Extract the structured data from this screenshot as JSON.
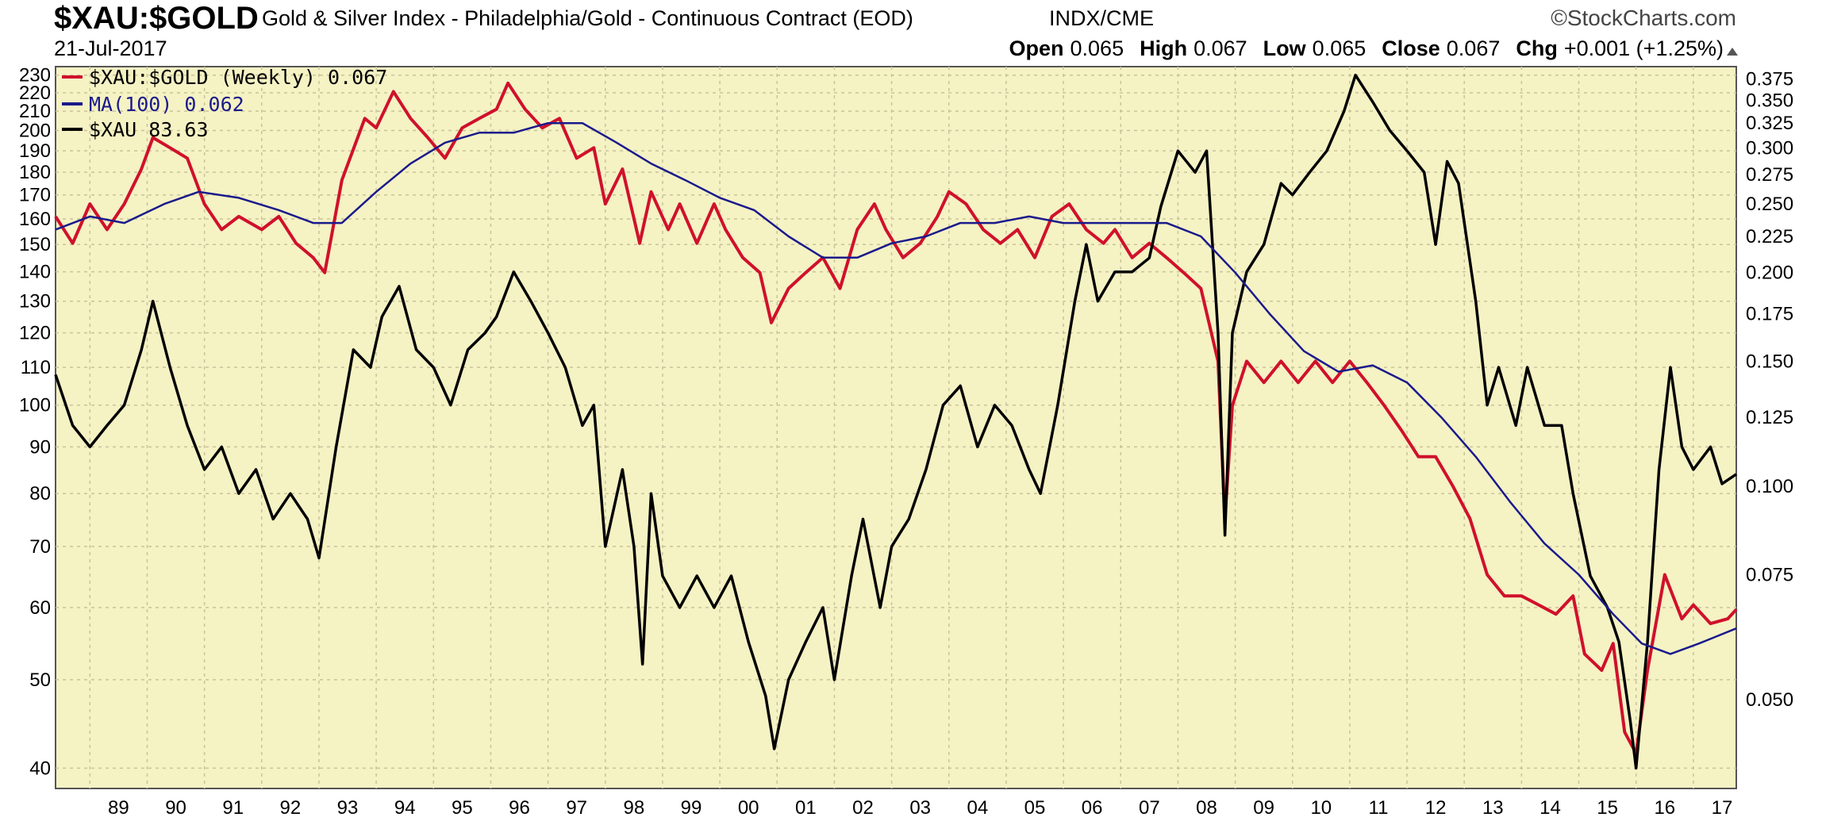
{
  "header": {
    "symbol": "$XAU:$GOLD",
    "description": "Gold & Silver Index - Philadelphia/Gold - Continuous Contract (EOD)",
    "exchange": "INDX/CME",
    "brand": "©StockCharts.com",
    "date": "21-Jul-2017"
  },
  "ohlc": {
    "open_label": "Open",
    "open": "0.065",
    "high_label": "High",
    "high": "0.067",
    "low_label": "Low",
    "low": "0.065",
    "close_label": "Close",
    "close": "0.067",
    "chg_label": "Chg",
    "chg": "+0.001 (+1.25%)"
  },
  "colors": {
    "plot_bg": "#f5f2c4",
    "grid": "#c9c39a",
    "ratio": "#d0112b",
    "ma": "#1a1a8c",
    "xau": "#000000",
    "up_arrow": "#555555"
  },
  "chart_data": {
    "type": "line",
    "scale": "log",
    "legend_position": "top-left",
    "grid": true,
    "x_tick_labels": [
      "89",
      "90",
      "91",
      "92",
      "93",
      "94",
      "95",
      "96",
      "97",
      "98",
      "99",
      "00",
      "01",
      "02",
      "03",
      "04",
      "05",
      "06",
      "07",
      "08",
      "09",
      "10",
      "11",
      "12",
      "13",
      "14",
      "15",
      "16",
      "17"
    ],
    "x_tick_years": [
      1989,
      1990,
      1991,
      1992,
      1993,
      1994,
      1995,
      1996,
      1997,
      1998,
      1999,
      2000,
      2001,
      2002,
      2003,
      2004,
      2005,
      2006,
      2007,
      2008,
      2009,
      2010,
      2011,
      2012,
      2013,
      2014,
      2015,
      2016,
      2017
    ],
    "x_range": [
      1988.4,
      2017.75
    ],
    "left_axis": {
      "ticks": [
        "230",
        "220",
        "210",
        "200",
        "190",
        "180",
        "170",
        "160",
        "150",
        "140",
        "130",
        "120",
        "110",
        "100",
        "90",
        "80",
        "70",
        "60",
        "50",
        "40"
      ],
      "range": [
        38,
        235
      ]
    },
    "right_axis": {
      "ticks": [
        "0.375",
        "0.350",
        "0.325",
        "0.300",
        "0.275",
        "0.250",
        "0.225",
        "0.200",
        "0.175",
        "0.150",
        "0.125",
        "0.100",
        "0.075",
        "0.050"
      ],
      "range": [
        0.03747,
        0.3904
      ]
    },
    "series": [
      {
        "name": "$XAU:$GOLD (Weekly)",
        "last": "0.067",
        "axis": "right",
        "points": [
          [
            1988.4,
            0.24
          ],
          [
            1988.7,
            0.22
          ],
          [
            1989.0,
            0.25
          ],
          [
            1989.3,
            0.23
          ],
          [
            1989.6,
            0.25
          ],
          [
            1989.9,
            0.28
          ],
          [
            1990.1,
            0.31
          ],
          [
            1990.4,
            0.3
          ],
          [
            1990.7,
            0.29
          ],
          [
            1991.0,
            0.25
          ],
          [
            1991.3,
            0.23
          ],
          [
            1991.6,
            0.24
          ],
          [
            1992.0,
            0.23
          ],
          [
            1992.3,
            0.24
          ],
          [
            1992.6,
            0.22
          ],
          [
            1992.9,
            0.21
          ],
          [
            1993.1,
            0.2
          ],
          [
            1993.4,
            0.27
          ],
          [
            1993.8,
            0.33
          ],
          [
            1994.0,
            0.32
          ],
          [
            1994.3,
            0.36
          ],
          [
            1994.6,
            0.33
          ],
          [
            1994.9,
            0.31
          ],
          [
            1995.2,
            0.29
          ],
          [
            1995.5,
            0.32
          ],
          [
            1995.8,
            0.33
          ],
          [
            1996.1,
            0.34
          ],
          [
            1996.3,
            0.37
          ],
          [
            1996.6,
            0.34
          ],
          [
            1996.9,
            0.32
          ],
          [
            1997.2,
            0.33
          ],
          [
            1997.5,
            0.29
          ],
          [
            1997.8,
            0.3
          ],
          [
            1998.0,
            0.25
          ],
          [
            1998.3,
            0.28
          ],
          [
            1998.6,
            0.22
          ],
          [
            1998.8,
            0.26
          ],
          [
            1999.1,
            0.23
          ],
          [
            1999.3,
            0.25
          ],
          [
            1999.6,
            0.22
          ],
          [
            1999.9,
            0.25
          ],
          [
            2000.1,
            0.23
          ],
          [
            2000.4,
            0.21
          ],
          [
            2000.7,
            0.2
          ],
          [
            2000.9,
            0.17
          ],
          [
            2001.2,
            0.19
          ],
          [
            2001.5,
            0.2
          ],
          [
            2001.8,
            0.21
          ],
          [
            2002.1,
            0.19
          ],
          [
            2002.4,
            0.23
          ],
          [
            2002.7,
            0.25
          ],
          [
            2002.9,
            0.23
          ],
          [
            2003.2,
            0.21
          ],
          [
            2003.5,
            0.22
          ],
          [
            2003.8,
            0.24
          ],
          [
            2004.0,
            0.26
          ],
          [
            2004.3,
            0.25
          ],
          [
            2004.6,
            0.23
          ],
          [
            2004.9,
            0.22
          ],
          [
            2005.2,
            0.23
          ],
          [
            2005.5,
            0.21
          ],
          [
            2005.8,
            0.24
          ],
          [
            2006.1,
            0.25
          ],
          [
            2006.4,
            0.23
          ],
          [
            2006.7,
            0.22
          ],
          [
            2006.9,
            0.23
          ],
          [
            2007.2,
            0.21
          ],
          [
            2007.5,
            0.22
          ],
          [
            2007.8,
            0.21
          ],
          [
            2008.1,
            0.2
          ],
          [
            2008.4,
            0.19
          ],
          [
            2008.7,
            0.15
          ],
          [
            2008.82,
            0.09
          ],
          [
            2008.95,
            0.13
          ],
          [
            2009.2,
            0.15
          ],
          [
            2009.5,
            0.14
          ],
          [
            2009.8,
            0.15
          ],
          [
            2010.1,
            0.14
          ],
          [
            2010.4,
            0.15
          ],
          [
            2010.7,
            0.14
          ],
          [
            2011.0,
            0.15
          ],
          [
            2011.3,
            0.14
          ],
          [
            2011.6,
            0.13
          ],
          [
            2011.9,
            0.12
          ],
          [
            2012.2,
            0.11
          ],
          [
            2012.5,
            0.11
          ],
          [
            2012.8,
            0.1
          ],
          [
            2013.1,
            0.09
          ],
          [
            2013.4,
            0.075
          ],
          [
            2013.7,
            0.07
          ],
          [
            2014.0,
            0.07
          ],
          [
            2014.3,
            0.068
          ],
          [
            2014.6,
            0.066
          ],
          [
            2014.9,
            0.07
          ],
          [
            2015.1,
            0.058
          ],
          [
            2015.4,
            0.055
          ],
          [
            2015.6,
            0.06
          ],
          [
            2015.8,
            0.045
          ],
          [
            2016.0,
            0.042
          ],
          [
            2016.2,
            0.055
          ],
          [
            2016.5,
            0.075
          ],
          [
            2016.8,
            0.065
          ],
          [
            2017.0,
            0.068
          ],
          [
            2017.3,
            0.064
          ],
          [
            2017.6,
            0.065
          ],
          [
            2017.75,
            0.067
          ]
        ]
      },
      {
        "name": "MA(100)",
        "last": "0.062",
        "axis": "right",
        "points": [
          [
            1988.4,
            0.23
          ],
          [
            1989.0,
            0.24
          ],
          [
            1989.6,
            0.235
          ],
          [
            1990.3,
            0.25
          ],
          [
            1990.9,
            0.26
          ],
          [
            1991.6,
            0.255
          ],
          [
            1992.3,
            0.245
          ],
          [
            1992.9,
            0.235
          ],
          [
            1993.4,
            0.235
          ],
          [
            1994.0,
            0.26
          ],
          [
            1994.6,
            0.285
          ],
          [
            1995.2,
            0.305
          ],
          [
            1995.8,
            0.315
          ],
          [
            1996.4,
            0.315
          ],
          [
            1997.0,
            0.325
          ],
          [
            1997.6,
            0.325
          ],
          [
            1998.2,
            0.305
          ],
          [
            1998.8,
            0.285
          ],
          [
            1999.4,
            0.27
          ],
          [
            2000.0,
            0.255
          ],
          [
            2000.6,
            0.245
          ],
          [
            2001.2,
            0.225
          ],
          [
            2001.8,
            0.21
          ],
          [
            2002.4,
            0.21
          ],
          [
            2003.0,
            0.22
          ],
          [
            2003.6,
            0.225
          ],
          [
            2004.2,
            0.235
          ],
          [
            2004.8,
            0.235
          ],
          [
            2005.4,
            0.24
          ],
          [
            2006.0,
            0.235
          ],
          [
            2006.6,
            0.235
          ],
          [
            2007.2,
            0.235
          ],
          [
            2007.8,
            0.235
          ],
          [
            2008.4,
            0.225
          ],
          [
            2009.0,
            0.2
          ],
          [
            2009.6,
            0.175
          ],
          [
            2010.2,
            0.155
          ],
          [
            2010.8,
            0.145
          ],
          [
            2011.4,
            0.148
          ],
          [
            2012.0,
            0.14
          ],
          [
            2012.6,
            0.125
          ],
          [
            2013.2,
            0.11
          ],
          [
            2013.8,
            0.095
          ],
          [
            2014.4,
            0.083
          ],
          [
            2015.0,
            0.075
          ],
          [
            2015.6,
            0.066
          ],
          [
            2016.1,
            0.06
          ],
          [
            2016.6,
            0.058
          ],
          [
            2017.1,
            0.06
          ],
          [
            2017.75,
            0.063
          ]
        ]
      },
      {
        "name": "$XAU",
        "last": "83.63",
        "axis": "left",
        "points": [
          [
            1988.4,
            108
          ],
          [
            1988.7,
            95
          ],
          [
            1989.0,
            90
          ],
          [
            1989.3,
            95
          ],
          [
            1989.6,
            100
          ],
          [
            1989.9,
            115
          ],
          [
            1990.1,
            130
          ],
          [
            1990.4,
            110
          ],
          [
            1990.7,
            95
          ],
          [
            1991.0,
            85
          ],
          [
            1991.3,
            90
          ],
          [
            1991.6,
            80
          ],
          [
            1991.9,
            85
          ],
          [
            1992.2,
            75
          ],
          [
            1992.5,
            80
          ],
          [
            1992.8,
            75
          ],
          [
            1993.0,
            68
          ],
          [
            1993.3,
            90
          ],
          [
            1993.6,
            115
          ],
          [
            1993.9,
            110
          ],
          [
            1994.1,
            125
          ],
          [
            1994.4,
            135
          ],
          [
            1994.7,
            115
          ],
          [
            1995.0,
            110
          ],
          [
            1995.3,
            100
          ],
          [
            1995.6,
            115
          ],
          [
            1995.9,
            120
          ],
          [
            1996.1,
            125
          ],
          [
            1996.4,
            140
          ],
          [
            1996.7,
            130
          ],
          [
            1997.0,
            120
          ],
          [
            1997.3,
            110
          ],
          [
            1997.6,
            95
          ],
          [
            1997.8,
            100
          ],
          [
            1998.0,
            70
          ],
          [
            1998.3,
            85
          ],
          [
            1998.5,
            70
          ],
          [
            1998.65,
            52
          ],
          [
            1998.8,
            80
          ],
          [
            1999.0,
            65
          ],
          [
            1999.3,
            60
          ],
          [
            1999.6,
            65
          ],
          [
            1999.9,
            60
          ],
          [
            2000.2,
            65
          ],
          [
            2000.5,
            55
          ],
          [
            2000.8,
            48
          ],
          [
            2000.95,
            42
          ],
          [
            2001.2,
            50
          ],
          [
            2001.5,
            55
          ],
          [
            2001.8,
            60
          ],
          [
            2002.0,
            50
          ],
          [
            2002.3,
            65
          ],
          [
            2002.5,
            75
          ],
          [
            2002.8,
            60
          ],
          [
            2003.0,
            70
          ],
          [
            2003.3,
            75
          ],
          [
            2003.6,
            85
          ],
          [
            2003.9,
            100
          ],
          [
            2004.2,
            105
          ],
          [
            2004.5,
            90
          ],
          [
            2004.8,
            100
          ],
          [
            2005.1,
            95
          ],
          [
            2005.4,
            85
          ],
          [
            2005.6,
            80
          ],
          [
            2005.9,
            100
          ],
          [
            2006.2,
            130
          ],
          [
            2006.4,
            150
          ],
          [
            2006.6,
            130
          ],
          [
            2006.9,
            140
          ],
          [
            2007.2,
            140
          ],
          [
            2007.5,
            145
          ],
          [
            2007.7,
            165
          ],
          [
            2008.0,
            190
          ],
          [
            2008.3,
            180
          ],
          [
            2008.5,
            190
          ],
          [
            2008.7,
            120
          ],
          [
            2008.82,
            72
          ],
          [
            2008.95,
            120
          ],
          [
            2009.2,
            140
          ],
          [
            2009.5,
            150
          ],
          [
            2009.8,
            175
          ],
          [
            2010.0,
            170
          ],
          [
            2010.3,
            180
          ],
          [
            2010.6,
            190
          ],
          [
            2010.9,
            210
          ],
          [
            2011.1,
            230
          ],
          [
            2011.4,
            215
          ],
          [
            2011.7,
            200
          ],
          [
            2012.0,
            190
          ],
          [
            2012.3,
            180
          ],
          [
            2012.5,
            150
          ],
          [
            2012.7,
            185
          ],
          [
            2012.9,
            175
          ],
          [
            2013.2,
            130
          ],
          [
            2013.4,
            100
          ],
          [
            2013.6,
            110
          ],
          [
            2013.9,
            95
          ],
          [
            2014.1,
            110
          ],
          [
            2014.4,
            95
          ],
          [
            2014.7,
            95
          ],
          [
            2014.9,
            80
          ],
          [
            2015.2,
            65
          ],
          [
            2015.5,
            60
          ],
          [
            2015.7,
            55
          ],
          [
            2015.9,
            45
          ],
          [
            2016.0,
            40
          ],
          [
            2016.2,
            55
          ],
          [
            2016.4,
            85
          ],
          [
            2016.6,
            110
          ],
          [
            2016.8,
            90
          ],
          [
            2017.0,
            85
          ],
          [
            2017.3,
            90
          ],
          [
            2017.5,
            82
          ],
          [
            2017.75,
            84
          ]
        ]
      }
    ]
  }
}
